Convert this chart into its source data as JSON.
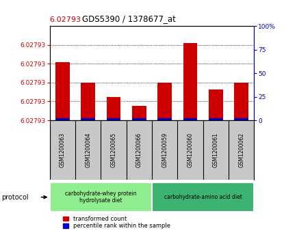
{
  "title": "GDS5390 / 1378677_at",
  "title_value": "6.02793",
  "samples": [
    "GSM1200063",
    "GSM1200064",
    "GSM1200065",
    "GSM1200066",
    "GSM1200059",
    "GSM1200060",
    "GSM1200061",
    "GSM1200062"
  ],
  "red_heights": [
    0.00062,
    0.0004,
    0.00025,
    0.00015,
    0.0004,
    0.00082,
    0.00033,
    0.0004
  ],
  "blue_heights": [
    2.5e-05,
    2.5e-05,
    2.5e-05,
    2.5e-05,
    2.5e-05,
    2.5e-05,
    2.5e-05,
    2.5e-05
  ],
  "ymin": 6.02793,
  "ymax": 6.02893,
  "ytick_offsets": [
    0.0,
    0.0002,
    0.0004,
    0.0006,
    0.0008
  ],
  "ytick_label": "6.02793",
  "right_yticks": [
    0,
    25,
    50,
    75,
    100
  ],
  "protocol_groups": [
    {
      "label": "carbohydrate-whey protein\nhydrolysate diet",
      "start": 0,
      "end": 4,
      "color": "#90EE90"
    },
    {
      "label": "carbohydrate-amino acid diet",
      "start": 4,
      "end": 8,
      "color": "#3CB371"
    }
  ],
  "protocol_label": "protocol",
  "legend_red": "transformed count",
  "legend_blue": "percentile rank within the sample",
  "bar_color_red": "#CC0000",
  "bar_color_blue": "#0000CC",
  "axis_left_color": "#CC0000",
  "axis_right_color": "#0000AA",
  "background_color": "#ffffff",
  "tick_area_bg": "#c8c8c8",
  "bar_width": 0.55
}
